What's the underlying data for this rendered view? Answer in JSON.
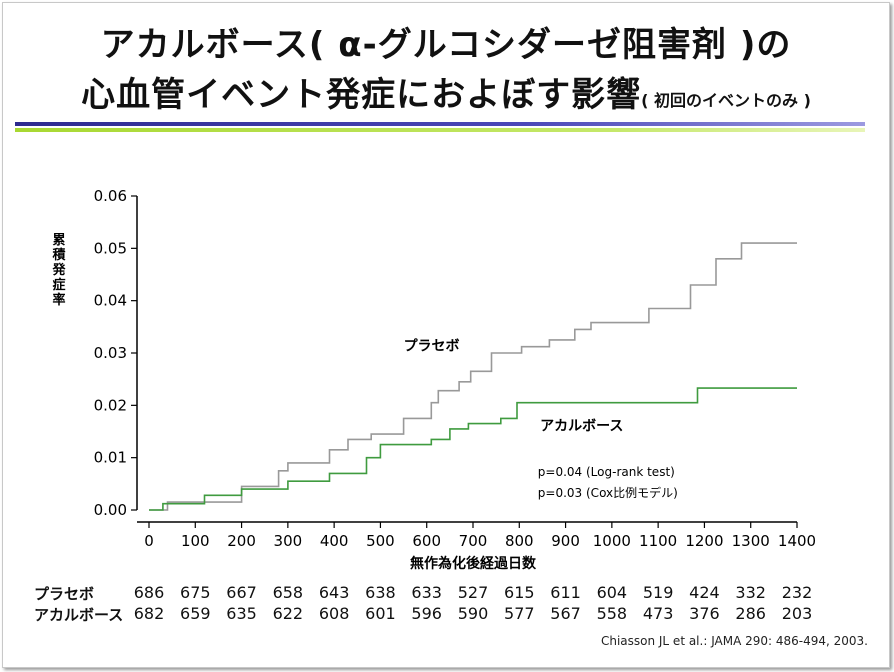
{
  "title": {
    "line1": "アカルボース( α-グルコシダーゼ阻害剤 )の",
    "line2": "心血管イベント発症におよぼす影響",
    "line2_small": "( 初回のイベントのみ )"
  },
  "chart_data": {
    "type": "line",
    "step": true,
    "xlabel": "無作為化後経過日数",
    "ylabel": "累積発症率",
    "xlim": [
      0,
      1400
    ],
    "ylim": [
      0,
      0.06
    ],
    "x_ticks": [
      "0",
      "100",
      "200",
      "300",
      "400",
      "500",
      "600",
      "700",
      "800",
      "900",
      "1000",
      "1100",
      "1200",
      "1300",
      "1400"
    ],
    "y_ticks": [
      "0.00",
      "0.01",
      "0.02",
      "0.03",
      "0.04",
      "0.05",
      "0.06"
    ],
    "series": [
      {
        "name": "プラセボ",
        "color": "#999999",
        "points": [
          [
            0,
            0
          ],
          [
            40,
            0
          ],
          [
            40,
            0.0015
          ],
          [
            200,
            0.0015
          ],
          [
            200,
            0.0045
          ],
          [
            280,
            0.0045
          ],
          [
            280,
            0.0075
          ],
          [
            300,
            0.0075
          ],
          [
            300,
            0.009
          ],
          [
            390,
            0.009
          ],
          [
            390,
            0.0115
          ],
          [
            430,
            0.0115
          ],
          [
            430,
            0.0135
          ],
          [
            480,
            0.0135
          ],
          [
            480,
            0.0145
          ],
          [
            550,
            0.0145
          ],
          [
            550,
            0.0175
          ],
          [
            610,
            0.0175
          ],
          [
            610,
            0.0205
          ],
          [
            625,
            0.0205
          ],
          [
            625,
            0.0228
          ],
          [
            670,
            0.0228
          ],
          [
            670,
            0.0245
          ],
          [
            695,
            0.0245
          ],
          [
            695,
            0.0265
          ],
          [
            740,
            0.0265
          ],
          [
            740,
            0.03
          ],
          [
            805,
            0.03
          ],
          [
            805,
            0.0312
          ],
          [
            865,
            0.0312
          ],
          [
            865,
            0.0325
          ],
          [
            920,
            0.0325
          ],
          [
            920,
            0.0345
          ],
          [
            955,
            0.0345
          ],
          [
            955,
            0.0358
          ],
          [
            1080,
            0.0358
          ],
          [
            1080,
            0.0385
          ],
          [
            1170,
            0.0385
          ],
          [
            1170,
            0.043
          ],
          [
            1225,
            0.043
          ],
          [
            1225,
            0.048
          ],
          [
            1280,
            0.048
          ],
          [
            1280,
            0.051
          ],
          [
            1400,
            0.051
          ]
        ]
      },
      {
        "name": "アカルボース",
        "color": "#3f9b3f",
        "points": [
          [
            0,
            0
          ],
          [
            30,
            0
          ],
          [
            30,
            0.0012
          ],
          [
            120,
            0.0012
          ],
          [
            120,
            0.0028
          ],
          [
            200,
            0.0028
          ],
          [
            200,
            0.004
          ],
          [
            300,
            0.004
          ],
          [
            300,
            0.0055
          ],
          [
            390,
            0.0055
          ],
          [
            390,
            0.007
          ],
          [
            470,
            0.007
          ],
          [
            470,
            0.01
          ],
          [
            500,
            0.01
          ],
          [
            500,
            0.0125
          ],
          [
            610,
            0.0125
          ],
          [
            610,
            0.0135
          ],
          [
            650,
            0.0135
          ],
          [
            650,
            0.0155
          ],
          [
            690,
            0.0155
          ],
          [
            690,
            0.0165
          ],
          [
            760,
            0.0165
          ],
          [
            760,
            0.0175
          ],
          [
            795,
            0.0175
          ],
          [
            795,
            0.0205
          ],
          [
            1185,
            0.0205
          ],
          [
            1185,
            0.0233
          ],
          [
            1400,
            0.0233
          ]
        ]
      }
    ],
    "annotations": {
      "placebo": "プラセボ",
      "acarbose": "アカルボース",
      "p1": "p=0.04 (Log-rank test)",
      "p2": "p=0.03 (Cox比例モデル)"
    }
  },
  "risk_table": {
    "rows": [
      {
        "label": "プラセボ",
        "values": [
          "686",
          "675",
          "667",
          "658",
          "643",
          "638",
          "633",
          "527",
          "615",
          "611",
          "604",
          "519",
          "424",
          "332",
          "232"
        ]
      },
      {
        "label": "アカルボース",
        "values": [
          "682",
          "659",
          "635",
          "622",
          "608",
          "601",
          "596",
          "590",
          "577",
          "567",
          "558",
          "473",
          "376",
          "286",
          "203"
        ]
      }
    ]
  },
  "citation": "Chiasson JL et al.: JAMA 290: 486-494, 2003."
}
